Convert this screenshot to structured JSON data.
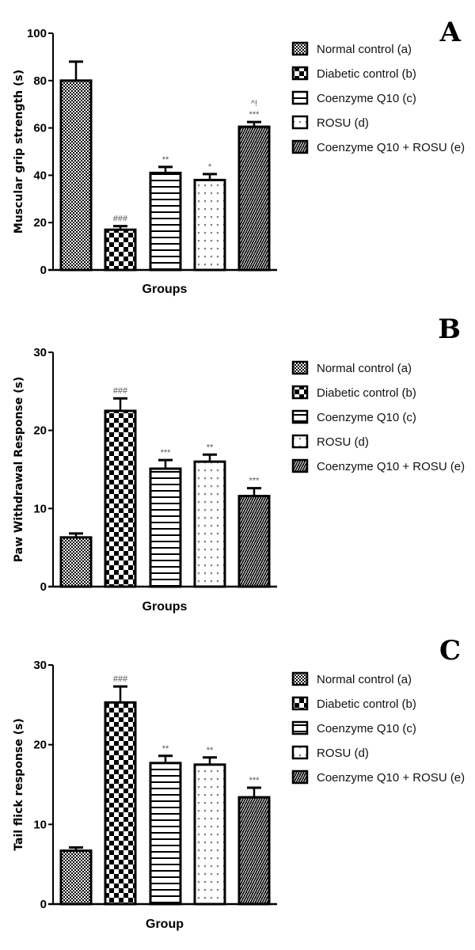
{
  "chart_data": [
    {
      "type": "bar",
      "panel_label": "A",
      "ylabel": "Muscular grip strength (s)",
      "xlabel": "Groups",
      "ylim": [
        0,
        100
      ],
      "yticks": [
        0,
        20,
        40,
        60,
        80,
        100
      ],
      "categories": [
        "Normal control (a)",
        "Diabetic control (b)",
        "Coenzyme Q10 (c)",
        "ROSU (d)",
        "Coenzyme Q10 + ROSU (e)"
      ],
      "values": [
        80,
        17,
        41,
        38,
        60.5
      ],
      "errors": [
        8,
        1.5,
        2.5,
        2.5,
        2
      ],
      "annotations": [
        [],
        [
          "###"
        ],
        [
          "**"
        ],
        [
          "*"
        ],
        [
          "^!",
          "***"
        ]
      ],
      "legend": [
        "Normal control (a)",
        "Diabetic control (b)",
        "Coenzyme Q10 (c)",
        "ROSU (d)",
        "Coenzyme Q10 + ROSU (e)"
      ],
      "legend_position": "right"
    },
    {
      "type": "bar",
      "panel_label": "B",
      "ylabel": "Paw Withdrawal Response (s)",
      "xlabel": "Groups",
      "ylim": [
        0,
        30
      ],
      "yticks": [
        0,
        10,
        20,
        30
      ],
      "categories": [
        "Normal control (a)",
        "Diabetic control (b)",
        "Coenzyme Q10 (c)",
        "ROSU (d)",
        "Coenzyme Q10 + ROSU (e)"
      ],
      "values": [
        6.3,
        22.5,
        15.1,
        16.0,
        11.6
      ],
      "errors": [
        0.5,
        1.6,
        1.1,
        0.9,
        1.0
      ],
      "annotations": [
        [],
        [
          "###"
        ],
        [
          "***"
        ],
        [
          "**"
        ],
        [
          "***"
        ]
      ],
      "legend": [
        "Normal control (a)",
        "Diabetic control (b)",
        "Coenzyme Q10 (c)",
        "ROSU (d)",
        "Coenzyme Q10 + ROSU (e)"
      ],
      "legend_position": "right"
    },
    {
      "type": "bar",
      "panel_label": "C",
      "ylabel": "Tail flick response (s)",
      "xlabel": "Group",
      "ylim": [
        0,
        30
      ],
      "yticks": [
        0,
        10,
        20,
        30
      ],
      "categories": [
        "Normal control (a)",
        "Diabetic control (b)",
        "Coenzyme Q10 (c)",
        "ROSU (d)",
        "Coenzyme Q10 + ROSU (e)"
      ],
      "values": [
        6.7,
        25.3,
        17.7,
        17.5,
        13.4
      ],
      "errors": [
        0.4,
        2.0,
        0.9,
        0.9,
        1.2
      ],
      "annotations": [
        [],
        [
          "###"
        ],
        [
          "**"
        ],
        [
          "**"
        ],
        [
          "***"
        ]
      ],
      "legend": [
        "Normal control (a)",
        "Diabetic control (b)",
        "Coenzyme Q10 (c)",
        "ROSU (d)",
        "Coenzyme Q10 + ROSU (e)"
      ],
      "legend_position": "right"
    }
  ]
}
